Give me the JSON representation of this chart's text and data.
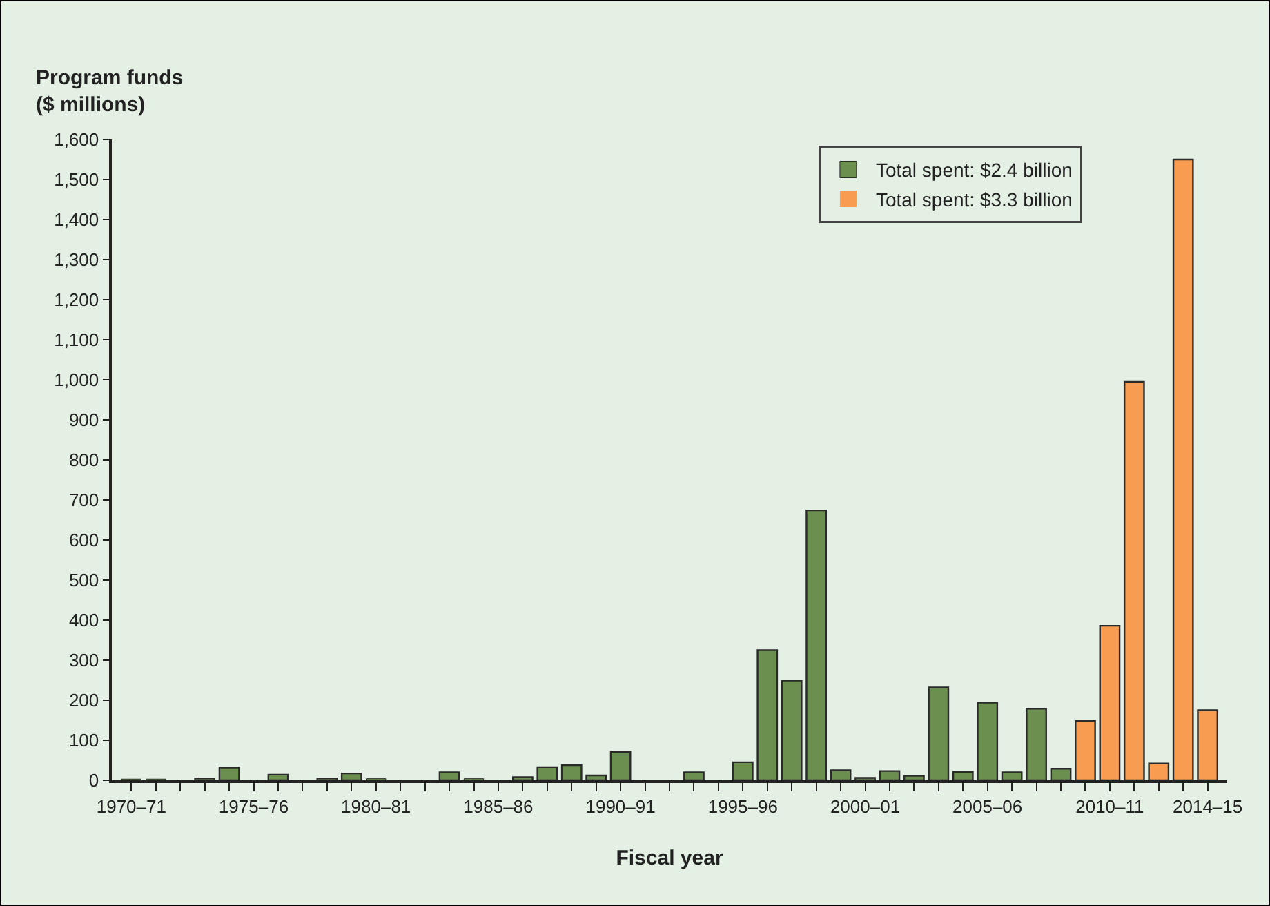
{
  "chart_data": {
    "type": "bar",
    "ylabel": "Program funds\n($ millions)",
    "xlabel": "Fiscal year",
    "categories": [
      "1970–71",
      null,
      null,
      null,
      null,
      "1975–76",
      null,
      null,
      null,
      null,
      "1980–81",
      null,
      null,
      null,
      null,
      "1985–86",
      null,
      null,
      null,
      null,
      "1990–91",
      null,
      null,
      null,
      null,
      "1995–96",
      null,
      null,
      null,
      null,
      "2000–01",
      null,
      null,
      null,
      null,
      "2005–06",
      null,
      null,
      null,
      null,
      "2010–11",
      null,
      null,
      null,
      "2014–15"
    ],
    "series": [
      {
        "name": "Total spent: $2.4 billion",
        "color": "#6a8f4e",
        "values": [
          3,
          3,
          0,
          5,
          32,
          0,
          14,
          0,
          5,
          17,
          4,
          0,
          0,
          20,
          4,
          0,
          8,
          33,
          38,
          12,
          71,
          0,
          0,
          20,
          0,
          45,
          325,
          249,
          674,
          25,
          6,
          23,
          11,
          232,
          21,
          194,
          20,
          179,
          29,
          null,
          null,
          null,
          null,
          null,
          null
        ]
      },
      {
        "name": "Total spent: $3.3 billion",
        "color": "#f89c52",
        "values": [
          null,
          null,
          null,
          null,
          null,
          null,
          null,
          null,
          null,
          null,
          null,
          null,
          null,
          null,
          null,
          null,
          null,
          null,
          null,
          null,
          null,
          null,
          null,
          null,
          null,
          null,
          null,
          null,
          null,
          null,
          null,
          null,
          null,
          null,
          null,
          null,
          null,
          null,
          null,
          148,
          386,
          995,
          42,
          1550,
          175
        ]
      }
    ],
    "ylim": [
      0,
      1600
    ],
    "yticks": [
      0,
      100,
      200,
      300,
      400,
      500,
      600,
      700,
      800,
      900,
      {
        "value": 1000,
        "label": "1,000"
      },
      {
        "value": 1100,
        "label": "1,100"
      },
      {
        "value": 1200,
        "label": "1,200"
      },
      {
        "value": 1300,
        "label": "1,300"
      },
      {
        "value": 1400,
        "label": "1,400"
      },
      {
        "value": 1500,
        "label": "1,500"
      },
      {
        "value": 1600,
        "label": "1,600"
      }
    ],
    "grid": false,
    "legend": "top right"
  }
}
